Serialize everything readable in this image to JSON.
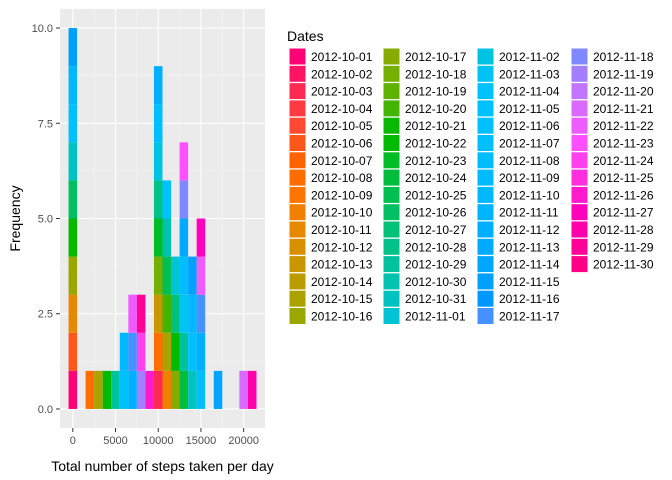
{
  "chart_data": {
    "type": "bar",
    "subtype": "stacked-histogram",
    "xlabel": "Total number of steps taken per day",
    "ylabel": "Frequency",
    "x_ticks": [
      "0",
      "5000",
      "10000",
      "15000",
      "20000"
    ],
    "y_ticks": [
      "0.0",
      "2.5",
      "5.0",
      "7.5",
      "10.0"
    ],
    "xlim": [
      -1500,
      22500
    ],
    "ylim": [
      -0.5,
      10.5
    ],
    "bin_width": 1000,
    "bin_counts": [
      {
        "x": 0,
        "count": 10
      },
      {
        "x": 2000,
        "count": 1
      },
      {
        "x": 3000,
        "count": 1
      },
      {
        "x": 4000,
        "count": 1
      },
      {
        "x": 5000,
        "count": 1
      },
      {
        "x": 6000,
        "count": 2
      },
      {
        "x": 7000,
        "count": 3
      },
      {
        "x": 8000,
        "count": 3
      },
      {
        "x": 9000,
        "count": 1
      },
      {
        "x": 10000,
        "count": 9
      },
      {
        "x": 11000,
        "count": 6
      },
      {
        "x": 12000,
        "count": 4
      },
      {
        "x": 13000,
        "count": 7
      },
      {
        "x": 14000,
        "count": 4
      },
      {
        "x": 15000,
        "count": 5
      },
      {
        "x": 17000,
        "count": 1
      },
      {
        "x": 20000,
        "count": 1
      },
      {
        "x": 21000,
        "count": 1
      }
    ],
    "grid": true,
    "legend_title": "Dates",
    "legend_position": "right",
    "legend": [
      "2012-10-01",
      "2012-10-02",
      "2012-10-03",
      "2012-10-04",
      "2012-10-05",
      "2012-10-06",
      "2012-10-07",
      "2012-10-08",
      "2012-10-09",
      "2012-10-10",
      "2012-10-11",
      "2012-10-12",
      "2012-10-13",
      "2012-10-14",
      "2012-10-15",
      "2012-10-16",
      "2012-10-17",
      "2012-10-18",
      "2012-10-19",
      "2012-10-20",
      "2012-10-21",
      "2012-10-22",
      "2012-10-23",
      "2012-10-24",
      "2012-10-25",
      "2012-10-26",
      "2012-10-27",
      "2012-10-28",
      "2012-10-29",
      "2012-10-30",
      "2012-10-31",
      "2012-11-01",
      "2012-11-02",
      "2012-11-03",
      "2012-11-04",
      "2012-11-05",
      "2012-11-06",
      "2012-11-07",
      "2012-11-08",
      "2012-11-09",
      "2012-11-10",
      "2012-11-11",
      "2012-11-12",
      "2012-11-13",
      "2012-11-14",
      "2012-11-15",
      "2012-11-16",
      "2012-11-17",
      "2012-11-18",
      "2012-11-19",
      "2012-11-20",
      "2012-11-21",
      "2012-11-22",
      "2012-11-23",
      "2012-11-24",
      "2012-11-25",
      "2012-11-26",
      "2012-11-27",
      "2012-11-28",
      "2012-11-29",
      "2012-11-30"
    ]
  },
  "colors": {
    "panel_background": "#ebebeb",
    "grid_major": "#ffffff",
    "grid_minor": "#f5f5f5"
  }
}
